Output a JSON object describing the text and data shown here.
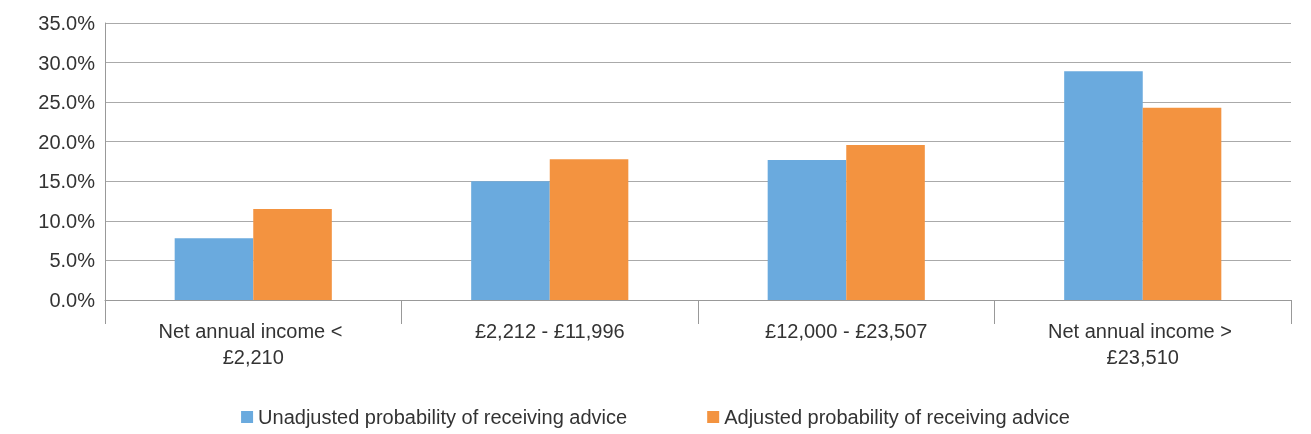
{
  "chart_data": {
    "type": "bar",
    "categories": [
      "Net annual income < £2,210",
      "£2,212 - £11,996",
      "£12,000 - £23,507",
      "Net annual income > £23,510"
    ],
    "series": [
      {
        "name": "Unadjusted probability of receiving advice",
        "color": "#6aaade",
        "values": [
          7.8,
          15.0,
          17.7,
          28.9
        ]
      },
      {
        "name": "Adjusted probability of receiving advice",
        "color": "#f39340",
        "values": [
          11.5,
          17.8,
          19.6,
          24.3
        ]
      }
    ],
    "ylim": [
      0,
      35
    ],
    "yticks": [
      {
        "value": 0,
        "label": "0.0%"
      },
      {
        "value": 5,
        "label": "5.0%"
      },
      {
        "value": 10,
        "label": "10.0%"
      },
      {
        "value": 15,
        "label": "15.0%"
      },
      {
        "value": 20,
        "label": "20.0%"
      },
      {
        "value": 25,
        "label": "25.0%"
      },
      {
        "value": 30,
        "label": "30.0%"
      },
      {
        "value": 35,
        "label": "35.0%"
      }
    ],
    "grid": "y",
    "legend": "bottom"
  }
}
